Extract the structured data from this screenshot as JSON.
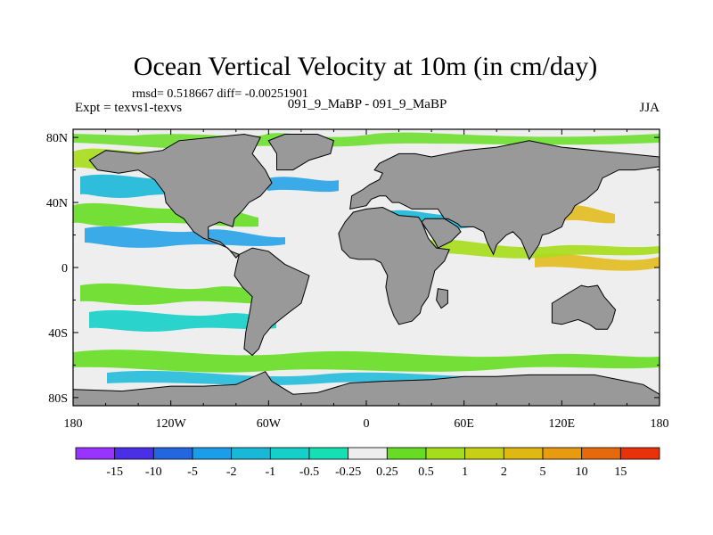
{
  "chart_data": {
    "type": "heatmap",
    "title": "Ocean Vertical Velocity at 10m (in cm/day)",
    "stats_line": "rmsd= 0.518667 diff= -0.00251901",
    "left_label": "Expt = texvs1-texvs",
    "center_label": "091_9_MaBP - 091_9_MaBP",
    "right_label": "JJA",
    "x_ticks": [
      {
        "value": -180,
        "label": "180"
      },
      {
        "value": -120,
        "label": "120W"
      },
      {
        "value": -60,
        "label": "60W"
      },
      {
        "value": 0,
        "label": "0"
      },
      {
        "value": 60,
        "label": "60E"
      },
      {
        "value": 120,
        "label": "120E"
      },
      {
        "value": 180,
        "label": "180"
      }
    ],
    "y_ticks": [
      {
        "value": 80,
        "label": "80N"
      },
      {
        "value": 40,
        "label": "40N"
      },
      {
        "value": 0,
        "label": "0"
      },
      {
        "value": -40,
        "label": "40S"
      },
      {
        "value": -80,
        "label": "80S"
      }
    ],
    "xlim": [
      -180,
      180
    ],
    "ylim": [
      -85,
      85
    ],
    "land_color": "#999999",
    "near_zero_color": "#eeeeee",
    "colorbar": {
      "colors": [
        "#9933ff",
        "#4a2fe6",
        "#2266e0",
        "#1a9ee8",
        "#18b8d8",
        "#14d0c8",
        "#14e0b4",
        "#eeeeee",
        "#66dd22",
        "#a6dd1a",
        "#c8d016",
        "#e0b812",
        "#e89a10",
        "#e66a0c",
        "#e8320a"
      ],
      "labels": [
        "-15",
        "-10",
        "-5",
        "-2",
        "-1",
        "-0.5",
        "-0.25",
        "0.25",
        "0.5",
        "1",
        "2",
        "5",
        "10",
        "15"
      ]
    },
    "continents": [
      {
        "name": "North America",
        "polygon": [
          [
            -170,
            66
          ],
          [
            -160,
            72
          ],
          [
            -140,
            70
          ],
          [
            -125,
            72
          ],
          [
            -115,
            78
          ],
          [
            -95,
            80
          ],
          [
            -75,
            82
          ],
          [
            -65,
            80
          ],
          [
            -70,
            70
          ],
          [
            -62,
            60
          ],
          [
            -58,
            52
          ],
          [
            -65,
            44
          ],
          [
            -72,
            40
          ],
          [
            -76,
            35
          ],
          [
            -81,
            30
          ],
          [
            -82,
            25
          ],
          [
            -90,
            28
          ],
          [
            -97,
            25
          ],
          [
            -97,
            18
          ],
          [
            -90,
            16
          ],
          [
            -83,
            10
          ],
          [
            -78,
            8
          ],
          [
            -80,
            6
          ],
          [
            -85,
            12
          ],
          [
            -92,
            15
          ],
          [
            -100,
            18
          ],
          [
            -106,
            22
          ],
          [
            -112,
            30
          ],
          [
            -117,
            33
          ],
          [
            -123,
            40
          ],
          [
            -124,
            46
          ],
          [
            -130,
            54
          ],
          [
            -140,
            60
          ],
          [
            -152,
            58
          ],
          [
            -165,
            60
          ]
        ]
      },
      {
        "name": "Greenland",
        "polygon": [
          [
            -55,
            60
          ],
          [
            -45,
            60
          ],
          [
            -35,
            66
          ],
          [
            -22,
            70
          ],
          [
            -20,
            78
          ],
          [
            -30,
            82
          ],
          [
            -50,
            82
          ],
          [
            -60,
            78
          ],
          [
            -55,
            70
          ]
        ]
      },
      {
        "name": "South America",
        "polygon": [
          [
            -78,
            8
          ],
          [
            -70,
            12
          ],
          [
            -60,
            10
          ],
          [
            -50,
            2
          ],
          [
            -35,
            -5
          ],
          [
            -37,
            -12
          ],
          [
            -40,
            -22
          ],
          [
            -48,
            -28
          ],
          [
            -58,
            -36
          ],
          [
            -63,
            -42
          ],
          [
            -66,
            -50
          ],
          [
            -70,
            -54
          ],
          [
            -75,
            -50
          ],
          [
            -74,
            -40
          ],
          [
            -72,
            -30
          ],
          [
            -70,
            -18
          ],
          [
            -76,
            -12
          ],
          [
            -81,
            -5
          ],
          [
            -80,
            0
          ]
        ]
      },
      {
        "name": "Eurasia",
        "polygon": [
          [
            -10,
            36
          ],
          [
            -9,
            44
          ],
          [
            -2,
            48
          ],
          [
            2,
            51
          ],
          [
            8,
            54
          ],
          [
            10,
            58
          ],
          [
            5,
            60
          ],
          [
            8,
            64
          ],
          [
            20,
            70
          ],
          [
            30,
            70
          ],
          [
            40,
            68
          ],
          [
            60,
            72
          ],
          [
            80,
            74
          ],
          [
            100,
            78
          ],
          [
            120,
            74
          ],
          [
            140,
            72
          ],
          [
            160,
            70
          ],
          [
            180,
            68
          ],
          [
            180,
            62
          ],
          [
            165,
            60
          ],
          [
            155,
            60
          ],
          [
            145,
            55
          ],
          [
            142,
            48
          ],
          [
            135,
            42
          ],
          [
            128,
            38
          ],
          [
            126,
            34
          ],
          [
            122,
            30
          ],
          [
            120,
            25
          ],
          [
            112,
            21
          ],
          [
            108,
            20
          ],
          [
            106,
            14
          ],
          [
            102,
            8
          ],
          [
            100,
            5
          ],
          [
            98,
            10
          ],
          [
            95,
            17
          ],
          [
            90,
            22
          ],
          [
            86,
            20
          ],
          [
            80,
            14
          ],
          [
            78,
            8
          ],
          [
            74,
            16
          ],
          [
            72,
            22
          ],
          [
            66,
            25
          ],
          [
            58,
            25
          ],
          [
            56,
            27
          ],
          [
            50,
            30
          ],
          [
            48,
            30
          ],
          [
            44,
            36
          ],
          [
            36,
            36
          ],
          [
            28,
            36
          ],
          [
            24,
            38
          ],
          [
            20,
            40
          ],
          [
            16,
            40
          ],
          [
            12,
            44
          ],
          [
            8,
            44
          ],
          [
            3,
            42
          ],
          [
            0,
            38
          ]
        ]
      },
      {
        "name": "Arabia",
        "polygon": [
          [
            36,
            30
          ],
          [
            40,
            30
          ],
          [
            48,
            30
          ],
          [
            56,
            25
          ],
          [
            58,
            22
          ],
          [
            52,
            16
          ],
          [
            44,
            12
          ],
          [
            42,
            16
          ],
          [
            38,
            22
          ],
          [
            34,
            28
          ]
        ]
      },
      {
        "name": "Africa",
        "polygon": [
          [
            -17,
            21
          ],
          [
            -13,
            28
          ],
          [
            -8,
            34
          ],
          [
            0,
            36
          ],
          [
            10,
            37
          ],
          [
            20,
            32
          ],
          [
            32,
            31
          ],
          [
            34,
            28
          ],
          [
            38,
            18
          ],
          [
            43,
            12
          ],
          [
            51,
            11
          ],
          [
            48,
            4
          ],
          [
            42,
            -2
          ],
          [
            40,
            -10
          ],
          [
            38,
            -18
          ],
          [
            34,
            -24
          ],
          [
            33,
            -28
          ],
          [
            28,
            -33
          ],
          [
            20,
            -35
          ],
          [
            17,
            -30
          ],
          [
            14,
            -22
          ],
          [
            12,
            -12
          ],
          [
            13,
            -5
          ],
          [
            9,
            3
          ],
          [
            5,
            5
          ],
          [
            -5,
            5
          ],
          [
            -10,
            6
          ],
          [
            -15,
            11
          ]
        ]
      },
      {
        "name": "Madagascar",
        "polygon": [
          [
            44,
            -13
          ],
          [
            50,
            -14
          ],
          [
            50,
            -22
          ],
          [
            46,
            -25
          ],
          [
            43,
            -20
          ]
        ]
      },
      {
        "name": "Australia",
        "polygon": [
          [
            114,
            -22
          ],
          [
            114,
            -34
          ],
          [
            120,
            -35
          ],
          [
            130,
            -32
          ],
          [
            137,
            -35
          ],
          [
            141,
            -38
          ],
          [
            148,
            -38
          ],
          [
            151,
            -33
          ],
          [
            153,
            -26
          ],
          [
            146,
            -18
          ],
          [
            142,
            -11
          ],
          [
            136,
            -12
          ],
          [
            132,
            -11
          ],
          [
            127,
            -14
          ],
          [
            122,
            -17
          ]
        ]
      },
      {
        "name": "Antarctica",
        "polygon": [
          [
            -180,
            -75
          ],
          [
            -150,
            -76
          ],
          [
            -120,
            -73
          ],
          [
            -100,
            -73
          ],
          [
            -80,
            -72
          ],
          [
            -62,
            -64
          ],
          [
            -58,
            -70
          ],
          [
            -45,
            -78
          ],
          [
            -30,
            -77
          ],
          [
            -10,
            -71
          ],
          [
            10,
            -70
          ],
          [
            40,
            -69
          ],
          [
            60,
            -67
          ],
          [
            80,
            -67
          ],
          [
            100,
            -66
          ],
          [
            120,
            -66
          ],
          [
            140,
            -66
          ],
          [
            160,
            -70
          ],
          [
            170,
            -72
          ],
          [
            180,
            -78
          ],
          [
            180,
            -90
          ],
          [
            -180,
            -90
          ]
        ]
      }
    ]
  }
}
